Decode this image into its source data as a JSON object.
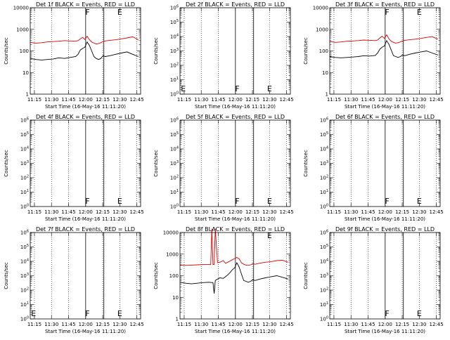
{
  "figure": {
    "ylabel": "Counts/sec",
    "xlabel": "Start Time (16-May-16 11:11:20)",
    "x_tick_labels": [
      "11:15",
      "11:30",
      "11:45",
      "12:00",
      "12:15",
      "12:30",
      "12:45"
    ],
    "colors": {
      "events": "#000000",
      "lld": "#dd0000",
      "axes": "#000000"
    }
  },
  "chart_data": [
    {
      "type": "line",
      "title": "Det 1f BLACK = Events, RED = LLD",
      "xlabel": "Start Time (16-May-16 11:11:20)",
      "ylabel": "Counts/sec",
      "yscale": "log",
      "ylim": [
        1,
        10000
      ],
      "ytick_labels": [
        "1",
        "10",
        "100",
        "1000",
        "10000"
      ],
      "xlim_minutes": [
        0,
        97
      ],
      "markers": [
        "F",
        "E"
      ],
      "series": [
        {
          "name": "Events",
          "color": "#000000",
          "x": [
            0,
            5,
            10,
            15,
            20,
            25,
            30,
            35,
            40,
            42,
            44,
            46,
            48,
            50,
            52,
            54,
            56,
            58,
            60,
            62,
            64,
            66,
            70,
            75,
            80,
            85,
            90,
            95
          ],
          "y": [
            45,
            40,
            38,
            40,
            42,
            48,
            45,
            50,
            55,
            70,
            110,
            130,
            150,
            260,
            180,
            100,
            55,
            45,
            40,
            45,
            60,
            55,
            60,
            70,
            80,
            90,
            70,
            55
          ]
        },
        {
          "name": "LLD",
          "color": "#dd0000",
          "x": [
            0,
            5,
            10,
            15,
            20,
            25,
            30,
            35,
            40,
            42,
            44,
            46,
            48,
            50,
            52,
            54,
            56,
            58,
            60,
            62,
            64,
            66,
            70,
            75,
            80,
            85,
            90,
            95
          ],
          "y": [
            250,
            230,
            240,
            260,
            270,
            280,
            300,
            290,
            280,
            300,
            360,
            420,
            340,
            480,
            330,
            260,
            230,
            210,
            220,
            240,
            270,
            290,
            310,
            330,
            360,
            400,
            450,
            330
          ]
        }
      ]
    },
    {
      "type": "line",
      "title": "Det 2f BLACK = Events, RED = LLD",
      "xlabel": "Start Time (16-May-16 11:11:20)",
      "ylabel": "Counts/sec",
      "yscale": "log",
      "ylim": [
        1,
        1000000
      ],
      "ytick_labels": [
        "10^0",
        "10^1",
        "10^2",
        "10^3",
        "10^4",
        "10^5",
        "10^6"
      ],
      "xlim_minutes": [
        0,
        97
      ],
      "markers": [
        "E",
        "F",
        "E"
      ],
      "series": []
    },
    {
      "type": "line",
      "title": "Det 3f BLACK = Events, RED = LLD",
      "xlabel": "Start Time (16-May-16 11:11:20)",
      "ylabel": "Counts/sec",
      "yscale": "log",
      "ylim": [
        1,
        10000
      ],
      "ytick_labels": [
        "1",
        "10",
        "100",
        "1000",
        "10000"
      ],
      "xlim_minutes": [
        0,
        97
      ],
      "markers": [
        "F",
        "E"
      ],
      "series": [
        {
          "name": "Events",
          "color": "#000000",
          "x": [
            0,
            5,
            10,
            15,
            20,
            25,
            30,
            35,
            40,
            42,
            44,
            46,
            48,
            50,
            52,
            54,
            56,
            58,
            60,
            62,
            64,
            66,
            70,
            75,
            80,
            85,
            90,
            95
          ],
          "y": [
            55,
            50,
            48,
            50,
            52,
            55,
            60,
            58,
            62,
            80,
            120,
            150,
            170,
            300,
            200,
            110,
            60,
            55,
            50,
            55,
            65,
            60,
            70,
            80,
            90,
            100,
            80,
            65
          ]
        },
        {
          "name": "LLD",
          "color": "#dd0000",
          "x": [
            0,
            5,
            10,
            15,
            20,
            25,
            30,
            35,
            40,
            42,
            44,
            46,
            48,
            50,
            52,
            54,
            56,
            58,
            60,
            62,
            64,
            66,
            70,
            75,
            80,
            85,
            90,
            95
          ],
          "y": [
            270,
            250,
            260,
            280,
            290,
            300,
            320,
            310,
            300,
            320,
            400,
            480,
            380,
            560,
            360,
            280,
            250,
            230,
            240,
            260,
            290,
            310,
            330,
            350,
            380,
            420,
            460,
            350
          ]
        }
      ]
    },
    {
      "type": "line",
      "title": "Det 4f BLACK = Events, RED = LLD",
      "xlabel": "Start Time (16-May-16 11:11:20)",
      "ylabel": "Counts/sec",
      "yscale": "log",
      "ylim": [
        1,
        1000000
      ],
      "ytick_labels": [
        "10^0",
        "10^1",
        "10^2",
        "10^3",
        "10^4",
        "10^5",
        "10^6"
      ],
      "xlim_minutes": [
        0,
        97
      ],
      "markers": [
        "F",
        "E"
      ],
      "series": []
    },
    {
      "type": "line",
      "title": "Det 5f BLACK = Events, RED = LLD",
      "xlabel": "Start Time (16-May-16 11:11:20)",
      "ylabel": "Counts/sec",
      "yscale": "log",
      "ylim": [
        1,
        1000000
      ],
      "ytick_labels": [
        "10^0",
        "10^1",
        "10^2",
        "10^3",
        "10^4",
        "10^5",
        "10^6"
      ],
      "xlim_minutes": [
        0,
        97
      ],
      "markers": [
        "F",
        "E"
      ],
      "series": []
    },
    {
      "type": "line",
      "title": "Det 6f BLACK = Events, RED = LLD",
      "xlabel": "Start Time (16-May-16 11:11:20)",
      "ylabel": "Counts/sec",
      "yscale": "log",
      "ylim": [
        1,
        1000000
      ],
      "ytick_labels": [
        "10^0",
        "10^1",
        "10^2",
        "10^3",
        "10^4",
        "10^5",
        "10^6"
      ],
      "xlim_minutes": [
        0,
        97
      ],
      "markers": [
        "F",
        "E"
      ],
      "series": []
    },
    {
      "type": "line",
      "title": "Det 7f BLACK = Events, RED = LLD",
      "xlabel": "Start Time (16-May-16 11:11:20)",
      "ylabel": "Counts/sec",
      "yscale": "log",
      "ylim": [
        1,
        1000000
      ],
      "ytick_labels": [
        "10^0",
        "10^1",
        "10^2",
        "10^3",
        "10^4",
        "10^5",
        "10^6"
      ],
      "xlim_minutes": [
        0,
        97
      ],
      "markers": [
        "E",
        "F",
        "E"
      ],
      "series": []
    },
    {
      "type": "line",
      "title": "Det 8f BLACK = Events, RED = LLD",
      "xlabel": "Start Time (16-May-16 11:11:20)",
      "ylabel": "Counts/sec",
      "yscale": "log",
      "ylim": [
        1,
        10000
      ],
      "ytick_labels": [
        "1",
        "10",
        "100",
        "1000",
        "10000"
      ],
      "xlim_minutes": [
        0,
        97
      ],
      "markers": [
        "E"
      ],
      "series": [
        {
          "name": "Events",
          "color": "#000000",
          "x": [
            0,
            5,
            10,
            15,
            20,
            25,
            29,
            30,
            31,
            33,
            35,
            38,
            40,
            42,
            44,
            46,
            48,
            50,
            52,
            54,
            56,
            58,
            60,
            62,
            64,
            66,
            70,
            75,
            80,
            85,
            90,
            95
          ],
          "y": [
            50,
            45,
            42,
            45,
            48,
            50,
            48,
            15,
            60,
            70,
            80,
            75,
            90,
            110,
            140,
            190,
            230,
            400,
            250,
            120,
            60,
            55,
            50,
            55,
            65,
            60,
            70,
            80,
            90,
            100,
            85,
            70
          ]
        },
        {
          "name": "LLD",
          "color": "#dd0000",
          "x": [
            0,
            5,
            10,
            15,
            20,
            25,
            27,
            28,
            29,
            30,
            31,
            33,
            35,
            38,
            40,
            42,
            44,
            46,
            48,
            50,
            52,
            54,
            56,
            58,
            60,
            62,
            64,
            66,
            70,
            75,
            80,
            85,
            90,
            95
          ],
          "y": [
            320,
            300,
            310,
            320,
            330,
            330,
            330,
            15000,
            330,
            330,
            15000,
            400,
            420,
            500,
            380,
            420,
            480,
            550,
            620,
            700,
            600,
            400,
            340,
            310,
            300,
            320,
            360,
            340,
            380,
            420,
            450,
            500,
            520,
            420
          ]
        }
      ]
    },
    {
      "type": "line",
      "title": "Det 9f BLACK = Events, RED = LLD",
      "xlabel": "Start Time (16-May-16 11:11:20)",
      "ylabel": "Counts/sec",
      "yscale": "log",
      "ylim": [
        1,
        1000000
      ],
      "ytick_labels": [
        "10^0",
        "10^1",
        "10^2",
        "10^3",
        "10^4",
        "10^5",
        "10^6"
      ],
      "xlim_minutes": [
        0,
        97
      ],
      "markers": [
        "F",
        "E"
      ],
      "series": []
    }
  ]
}
